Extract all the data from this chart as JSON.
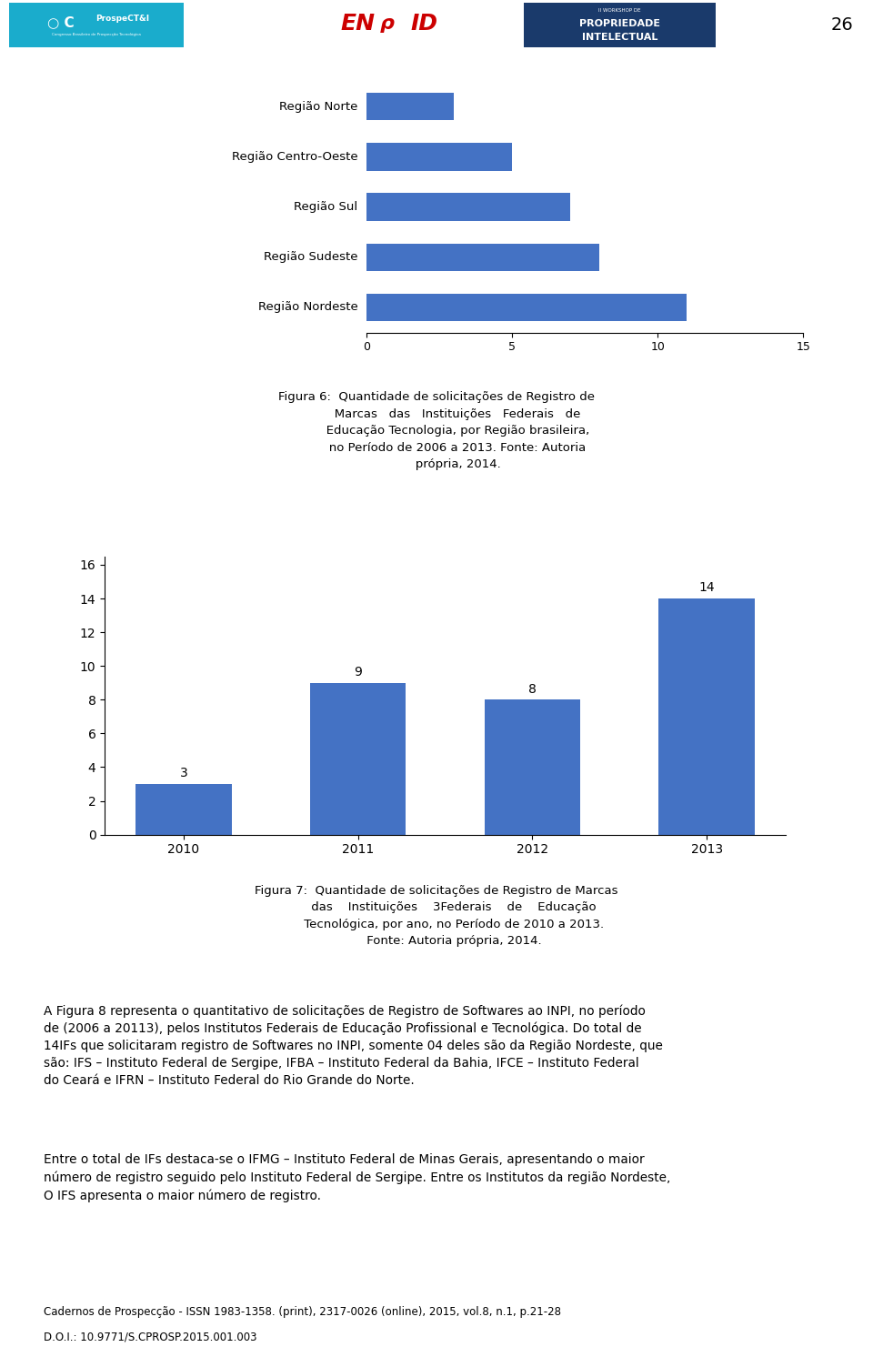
{
  "page_width": 9.6,
  "page_height": 14.92,
  "background_color": "#ffffff",
  "header_line_color": "#5b9bd5",
  "page_number": "26",
  "bar_categories": [
    "2010",
    "2011",
    "2012",
    "2013"
  ],
  "bar_values": [
    3,
    9,
    8,
    14
  ],
  "bar_color": "#4472c4",
  "yticks": [
    0,
    2,
    4,
    6,
    8,
    10,
    12,
    14,
    16
  ],
  "ylim": [
    0,
    16.5
  ],
  "chart7_caption": "Figura 7:  Quantidade de solicitações de Registro de Marcas\n         das    Instituições    3Federais    de    Educação\n         Tecnológica, por ano, no Período de 2010 a 2013.\n         Fonte: Autoria própria, 2014.",
  "body_text_1": "A Figura 8 representa o quantitativo de solicitações de Registro de Softwares ao INPI, no período\nde (2006 a 20113), pelos Institutos Federais de Educação Profissional e Tecnológica. Do total de\n14IFs que solicitaram registro de Softwares no INPI, somente 04 deles são da Região Nordeste, que\nsão: IFS – Instituto Federal de Sergipe, IFBA – Instituto Federal da Bahia, IFCE – Instituto Federal\ndo Ceará e IFRN – Instituto Federal do Rio Grande do Norte.",
  "body_text_2": "Entre o total de IFs destaca-se o IFMG – Instituto Federal de Minas Gerais, apresentando o maior\nnúmero de registro seguido pelo Instituto Federal de Sergipe. Entre os Institutos da região Nordeste,\nO IFS apresenta o maior número de registro.",
  "footer_line1": "Cadernos de Prospecção - ISSN 1983-1358. (print), 2317-0026 (online), 2015, vol.8, n.1, p.21-28",
  "footer_line2": "D.O.I.: 10.9771/S.CPROSP.2015.001.003",
  "fig6_bar_categories_top_to_bottom": [
    "Região Norte",
    "Região Centro-Oeste",
    "Região Sul",
    "Região Sudeste",
    "Região Nordeste"
  ],
  "fig6_bar_values_top_to_bottom": [
    3,
    5,
    7,
    8,
    11
  ],
  "fig6_bar_color": "#4472c4",
  "fig6_xlim": [
    0,
    15
  ],
  "fig6_xticks": [
    0,
    5,
    10,
    15
  ],
  "fig6_caption": "Figura 6:  Quantidade de solicitações de Registro de\n           Marcas   das   Instituições   Federais   de\n           Educação Tecnologia, por Região brasileira,\n           no Período de 2006 a 2013. Fonte: Autoria\n           própria, 2014."
}
